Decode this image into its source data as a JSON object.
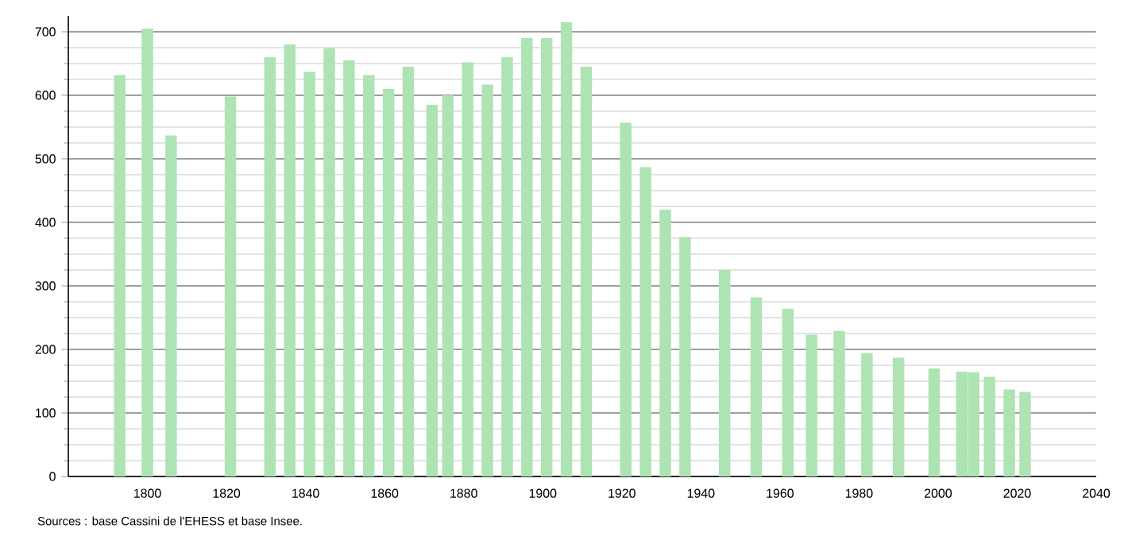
{
  "chart_data": {
    "type": "bar",
    "x": [
      1793,
      1800,
      1806,
      1821,
      1831,
      1836,
      1841,
      1846,
      1851,
      1856,
      1861,
      1866,
      1872,
      1876,
      1881,
      1886,
      1891,
      1896,
      1901,
      1906,
      1911,
      1921,
      1926,
      1931,
      1936,
      1946,
      1954,
      1962,
      1968,
      1975,
      1982,
      1990,
      1999,
      2006,
      2009,
      2013,
      2018,
      2022
    ],
    "values": [
      632,
      705,
      537,
      598,
      660,
      680,
      637,
      674,
      655,
      632,
      610,
      645,
      585,
      600,
      652,
      617,
      660,
      690,
      690,
      715,
      645,
      557,
      487,
      420,
      377,
      325,
      282,
      264,
      223,
      229,
      194,
      187,
      170,
      165,
      164,
      157,
      137,
      133
    ],
    "color": "#aee3b4",
    "xlim": [
      1780,
      2040
    ],
    "ylim": [
      0,
      725
    ],
    "xticks": [
      1800,
      1820,
      1840,
      1860,
      1880,
      1900,
      1920,
      1940,
      1960,
      1980,
      2000,
      2020,
      2040
    ],
    "yticks": [
      0,
      100,
      200,
      300,
      400,
      500,
      600,
      700
    ],
    "grid": "y",
    "annotations": [
      "Sources : base Cassini de l'EHESS et base Insee."
    ]
  }
}
